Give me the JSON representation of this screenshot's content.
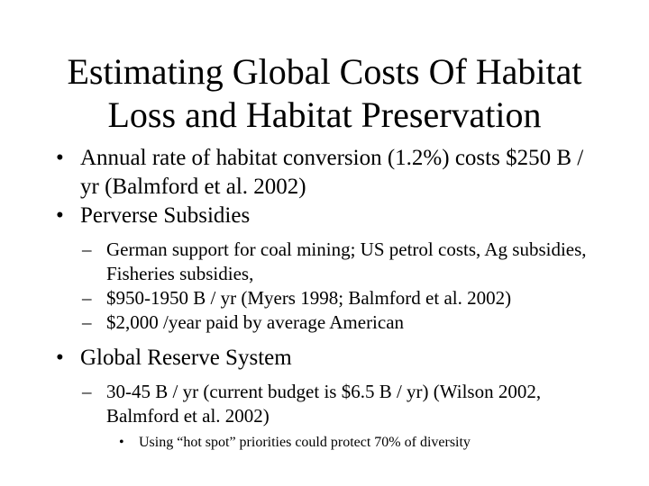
{
  "slide": {
    "title_line1": "Estimating Global Costs Of Habitat",
    "title_line2": "Loss and Habitat Preservation",
    "bullets": [
      {
        "marker": "•",
        "text": "Annual rate of habitat conversion (1.2%) costs $250 B / yr (Balmford et al. 2002)"
      },
      {
        "marker": "•",
        "text": "Perverse Subsidies",
        "subitems": [
          {
            "marker": "–",
            "text": "German support for coal mining; US petrol costs, Ag subsidies, Fisheries subsidies,"
          },
          {
            "marker": "–",
            "text": "$950-1950 B / yr (Myers 1998; Balmford et al. 2002)"
          },
          {
            "marker": "–",
            "text": "$2,000 /year paid by average American"
          }
        ]
      },
      {
        "marker": "•",
        "text": "Global Reserve System",
        "subitems": [
          {
            "marker": "–",
            "text": "30-45 B / yr  (current budget is $6.5 B / yr) (Wilson 2002, Balmford et al. 2002)",
            "subitems": [
              {
                "marker": "•",
                "text": "Using “hot spot” priorities could protect 70% of diversity"
              }
            ]
          }
        ]
      }
    ]
  }
}
